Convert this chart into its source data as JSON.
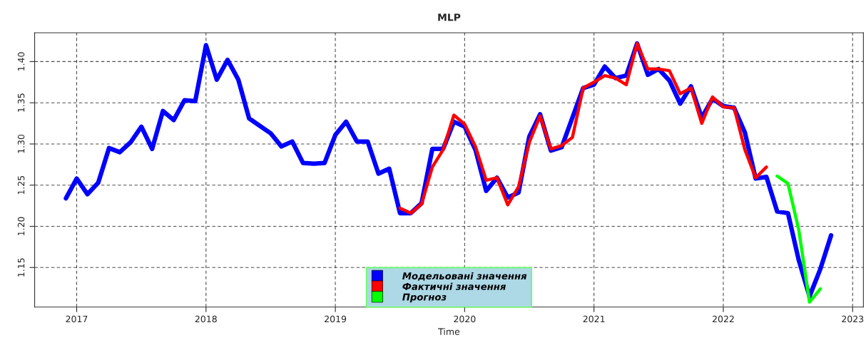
{
  "chart_data": {
    "type": "line",
    "title": "MLP",
    "xlabel": "Time",
    "xlim": [
      "2016-09-04",
      "2023-02-01"
    ],
    "xticks": [
      "2017",
      "2018",
      "2019",
      "2020",
      "2021",
      "2022",
      "2023"
    ],
    "ylim": [
      1.102,
      1.435
    ],
    "yticks": [
      {
        "value": 1.15,
        "label": "1.15"
      },
      {
        "value": 1.2,
        "label": "1.20"
      },
      {
        "value": 1.25,
        "label": "1.25"
      },
      {
        "value": 1.3,
        "label": "1.30"
      },
      {
        "value": 1.35,
        "label": "1.35"
      },
      {
        "value": 1.4,
        "label": "1.40"
      }
    ],
    "grid": true,
    "legend": "bottom",
    "line_style": "solid",
    "marker": "none",
    "series": [
      {
        "name": "Модельовані значення",
        "color": "#0000ff",
        "x": [
          "2016-12",
          "2017-01",
          "2017-02",
          "2017-03",
          "2017-04",
          "2017-05",
          "2017-06",
          "2017-07",
          "2017-08",
          "2017-09",
          "2017-10",
          "2017-11",
          "2017-12",
          "2018-01",
          "2018-02",
          "2018-03",
          "2018-04",
          "2018-05",
          "2018-06",
          "2018-07",
          "2018-08",
          "2018-09",
          "2018-10",
          "2018-11",
          "2018-12",
          "2019-01",
          "2019-02",
          "2019-03",
          "2019-04",
          "2019-05",
          "2019-06",
          "2019-07",
          "2019-08",
          "2019-09",
          "2019-10",
          "2019-11",
          "2019-12",
          "2020-01",
          "2020-02",
          "2020-03",
          "2020-04",
          "2020-05",
          "2020-06",
          "2020-07",
          "2020-08",
          "2020-09",
          "2020-10",
          "2020-11",
          "2020-12",
          "2021-01",
          "2021-02",
          "2021-03",
          "2021-04",
          "2021-05",
          "2021-06",
          "2021-07",
          "2021-08",
          "2021-09",
          "2021-10",
          "2021-11",
          "2021-12",
          "2022-01",
          "2022-02",
          "2022-03",
          "2022-04",
          "2022-05",
          "2022-06",
          "2022-07",
          "2022-08",
          "2022-09",
          "2022-10",
          "2022-11"
        ],
        "values": [
          1.234,
          1.258,
          1.239,
          1.253,
          1.295,
          1.29,
          1.302,
          1.321,
          1.294,
          1.34,
          1.329,
          1.353,
          1.352,
          1.42,
          1.378,
          1.402,
          1.378,
          1.331,
          1.322,
          1.313,
          1.297,
          1.303,
          1.277,
          1.276,
          1.277,
          1.311,
          1.327,
          1.303,
          1.303,
          1.264,
          1.27,
          1.216,
          1.216,
          1.228,
          1.294,
          1.294,
          1.327,
          1.321,
          1.293,
          1.243,
          1.259,
          1.235,
          1.241,
          1.309,
          1.336,
          1.292,
          1.296,
          1.332,
          1.368,
          1.372,
          1.394,
          1.38,
          1.383,
          1.422,
          1.384,
          1.391,
          1.377,
          1.349,
          1.37,
          1.332,
          1.355,
          1.346,
          1.344,
          1.314,
          1.258,
          1.26,
          1.218,
          1.216,
          1.159,
          1.115,
          1.148,
          1.189
        ]
      },
      {
        "name": "Фактичні значення",
        "color": "#ff0000",
        "x": [
          "2019-07",
          "2019-08",
          "2019-09",
          "2019-10",
          "2019-11",
          "2019-12",
          "2020-01",
          "2020-02",
          "2020-03",
          "2020-04",
          "2020-05",
          "2020-06",
          "2020-07",
          "2020-08",
          "2020-09",
          "2020-10",
          "2020-11",
          "2020-12",
          "2021-01",
          "2021-02",
          "2021-03",
          "2021-04",
          "2021-05",
          "2021-06",
          "2021-07",
          "2021-08",
          "2021-09",
          "2021-10",
          "2021-11",
          "2021-12",
          "2022-01",
          "2022-02",
          "2022-03",
          "2022-04",
          "2022-05"
        ],
        "values": [
          1.222,
          1.216,
          1.227,
          1.272,
          1.293,
          1.335,
          1.324,
          1.297,
          1.256,
          1.259,
          1.226,
          1.248,
          1.302,
          1.334,
          1.294,
          1.298,
          1.308,
          1.368,
          1.375,
          1.383,
          1.38,
          1.372,
          1.422,
          1.391,
          1.391,
          1.389,
          1.361,
          1.368,
          1.325,
          1.357,
          1.345,
          1.344,
          1.293,
          1.259,
          1.272
        ]
      },
      {
        "name": "Прогноз",
        "color": "#00ff00",
        "x": [
          "2022-06",
          "2022-07",
          "2022-08",
          "2022-09",
          "2022-10"
        ],
        "values": [
          1.261,
          1.252,
          1.196,
          1.108,
          1.124
        ]
      }
    ]
  }
}
